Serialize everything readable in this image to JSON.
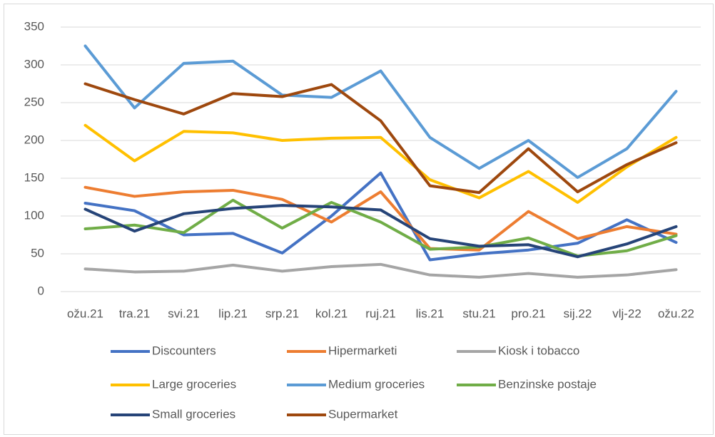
{
  "chart_data": {
    "type": "line",
    "categories": [
      "ožu.21",
      "tra.21",
      "svi.21",
      "lip.21",
      "srp.21",
      "kol.21",
      "ruj.21",
      "lis.21",
      "stu.21",
      "pro.21",
      "sij.22",
      "vlj-22",
      "ožu.22"
    ],
    "series": [
      {
        "name": "Discounters",
        "color": "#4472c4",
        "values": [
          117,
          107,
          75,
          77,
          51,
          100,
          157,
          42,
          50,
          55,
          64,
          95,
          65
        ]
      },
      {
        "name": "Hipermarketi",
        "color": "#ed7d31",
        "values": [
          138,
          126,
          132,
          134,
          122,
          92,
          132,
          57,
          55,
          106,
          70,
          86,
          76
        ]
      },
      {
        "name": "Kiosk i tobacco",
        "color": "#a5a5a5",
        "values": [
          30,
          26,
          27,
          35,
          27,
          33,
          36,
          22,
          19,
          24,
          19,
          22,
          29
        ]
      },
      {
        "name": "Large groceries",
        "color": "#ffc000",
        "values": [
          220,
          173,
          212,
          210,
          200,
          203,
          204,
          148,
          124,
          159,
          118,
          165,
          204
        ]
      },
      {
        "name": "Medium groceries",
        "color": "#5b9bd5",
        "values": [
          325,
          243,
          302,
          305,
          260,
          257,
          292,
          204,
          163,
          200,
          151,
          189,
          265
        ]
      },
      {
        "name": "Benzinske postaje",
        "color": "#70ad47",
        "values": [
          83,
          88,
          78,
          121,
          84,
          118,
          92,
          56,
          59,
          71,
          47,
          54,
          74
        ]
      },
      {
        "name": "Small groceries",
        "color": "#264478",
        "values": [
          109,
          80,
          103,
          110,
          114,
          112,
          108,
          70,
          60,
          62,
          46,
          63,
          86
        ]
      },
      {
        "name": "Supermarket",
        "color": "#9e480e",
        "values": [
          275,
          254,
          235,
          262,
          258,
          274,
          226,
          140,
          131,
          189,
          132,
          168,
          197
        ]
      }
    ],
    "ylim": [
      0,
      350
    ],
    "yticks": [
      0,
      50,
      100,
      150,
      200,
      250,
      300,
      350
    ],
    "grid": true,
    "legend": "bottom"
  }
}
